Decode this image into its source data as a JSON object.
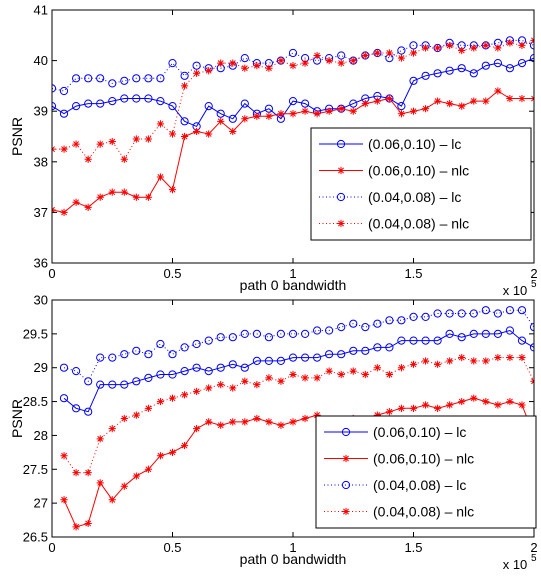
{
  "chart_data": [
    {
      "type": "line",
      "xlabel": "path 0 bandwidth",
      "ylabel": "PSNR",
      "x_multiplier_base": "x 10",
      "x_multiplier_exp": "5",
      "xlim": [
        0,
        200000
      ],
      "ylim": [
        36,
        41
      ],
      "xticks": [
        0,
        50000,
        100000,
        150000,
        200000
      ],
      "xtick_labels": [
        "0",
        "0.5",
        "1",
        "1.5",
        "2"
      ],
      "yticks": [
        36,
        37,
        38,
        39,
        40,
        41
      ],
      "ytick_labels": [
        "36",
        "37",
        "38",
        "39",
        "40",
        "41"
      ],
      "legend_position": "center-right",
      "x": [
        0,
        5000,
        10000,
        15000,
        20000,
        25000,
        30000,
        35000,
        40000,
        45000,
        50000,
        55000,
        60000,
        65000,
        70000,
        75000,
        80000,
        85000,
        90000,
        95000,
        100000,
        105000,
        110000,
        115000,
        120000,
        125000,
        130000,
        135000,
        140000,
        145000,
        150000,
        155000,
        160000,
        165000,
        170000,
        175000,
        180000,
        185000,
        190000,
        195000,
        200000
      ],
      "series": [
        {
          "name": "(0.06,0.10) – lc",
          "color": "#0000ff",
          "line": "solid",
          "marker": "circle",
          "values": [
            39.1,
            38.95,
            39.1,
            39.15,
            39.15,
            39.2,
            39.25,
            39.25,
            39.25,
            39.2,
            39.1,
            38.8,
            38.7,
            39.1,
            38.95,
            38.85,
            39.15,
            38.95,
            39.05,
            38.85,
            39.2,
            39.15,
            39.0,
            39.05,
            39.05,
            39.15,
            39.25,
            39.3,
            39.25,
            39.1,
            39.6,
            39.7,
            39.75,
            39.8,
            39.85,
            39.75,
            39.9,
            39.95,
            39.85,
            39.95,
            40.05
          ]
        },
        {
          "name": "(0.06,0.10) – nlc",
          "color": "#ff0000",
          "line": "solid",
          "marker": "star",
          "values": [
            37.05,
            37.0,
            37.2,
            37.1,
            37.3,
            37.4,
            37.4,
            37.3,
            37.3,
            37.7,
            37.45,
            38.5,
            38.6,
            38.55,
            38.8,
            38.6,
            38.85,
            38.9,
            38.9,
            38.95,
            38.95,
            39.0,
            38.95,
            39.0,
            39.05,
            39.0,
            39.15,
            39.2,
            39.25,
            38.95,
            39.0,
            39.05,
            39.2,
            39.15,
            39.1,
            39.2,
            39.2,
            39.4,
            39.25,
            39.25,
            39.25
          ]
        },
        {
          "name": "(0.04,0.08) – lc",
          "color": "#0000ff",
          "line": "dotted",
          "marker": "circle",
          "values": [
            39.45,
            39.4,
            39.65,
            39.65,
            39.65,
            39.55,
            39.6,
            39.65,
            39.65,
            39.65,
            39.95,
            39.7,
            39.9,
            39.85,
            39.85,
            39.9,
            40.05,
            39.95,
            39.95,
            40.0,
            40.15,
            40.05,
            40.0,
            40.05,
            40.1,
            40.0,
            40.1,
            40.15,
            40.05,
            40.2,
            40.3,
            40.3,
            40.25,
            40.35,
            40.3,
            40.3,
            40.3,
            40.35,
            40.4,
            40.4,
            40.3
          ]
        },
        {
          "name": "(0.04,0.08) – nlc",
          "color": "#ff0000",
          "line": "dotted",
          "marker": "star",
          "values": [
            38.25,
            38.25,
            38.35,
            38.05,
            38.35,
            38.4,
            38.05,
            38.45,
            38.45,
            38.75,
            38.55,
            39.5,
            39.75,
            39.8,
            39.95,
            39.95,
            39.85,
            39.9,
            39.85,
            40.0,
            39.9,
            39.95,
            40.1,
            40.0,
            39.95,
            40.0,
            40.1,
            40.15,
            40.15,
            40.05,
            40.15,
            40.25,
            40.25,
            40.3,
            40.2,
            40.25,
            40.3,
            40.25,
            40.35,
            40.3,
            40.4
          ]
        }
      ]
    },
    {
      "type": "line",
      "xlabel": "path 0 bandwidth",
      "ylabel": "PSNR",
      "x_multiplier_base": "x 10",
      "x_multiplier_exp": "5",
      "xlim": [
        0,
        200000
      ],
      "ylim": [
        26.5,
        30
      ],
      "xticks": [
        0,
        50000,
        100000,
        150000,
        200000
      ],
      "xtick_labels": [
        "0",
        "0.5",
        "1",
        "1.5",
        "2"
      ],
      "yticks": [
        26.5,
        27,
        27.5,
        28,
        28.5,
        29,
        29.5,
        30
      ],
      "ytick_labels": [
        "26.5",
        "27",
        "27.5",
        "28",
        "28.5",
        "29",
        "29.5",
        "30"
      ],
      "legend_position": "lower-right",
      "x": [
        5000,
        10000,
        15000,
        20000,
        25000,
        30000,
        35000,
        40000,
        45000,
        50000,
        55000,
        60000,
        65000,
        70000,
        75000,
        80000,
        85000,
        90000,
        95000,
        100000,
        105000,
        110000,
        115000,
        120000,
        125000,
        130000,
        135000,
        140000,
        145000,
        150000,
        155000,
        160000,
        165000,
        170000,
        175000,
        180000,
        185000,
        190000,
        195000,
        200000
      ],
      "series": [
        {
          "name": "(0.06,0.10) – lc",
          "color": "#0000ff",
          "line": "solid",
          "marker": "circle",
          "values": [
            28.55,
            28.4,
            28.35,
            28.75,
            28.75,
            28.75,
            28.8,
            28.85,
            28.9,
            28.9,
            28.95,
            29.0,
            28.95,
            29.0,
            29.05,
            29.0,
            29.1,
            29.1,
            29.1,
            29.15,
            29.15,
            29.15,
            29.2,
            29.2,
            29.25,
            29.25,
            29.3,
            29.3,
            29.4,
            29.4,
            29.4,
            29.4,
            29.5,
            29.45,
            29.5,
            29.5,
            29.5,
            29.55,
            29.4,
            29.3
          ]
        },
        {
          "name": "(0.06,0.10) – nlc",
          "color": "#ff0000",
          "line": "solid",
          "marker": "star",
          "values": [
            27.05,
            26.65,
            26.7,
            27.3,
            27.05,
            27.25,
            27.4,
            27.5,
            27.7,
            27.75,
            27.85,
            28.1,
            28.2,
            28.15,
            28.2,
            28.2,
            28.25,
            28.2,
            28.15,
            28.2,
            28.25,
            28.3,
            28.2,
            28.15,
            28.25,
            28.2,
            28.3,
            28.35,
            28.4,
            28.4,
            28.45,
            28.4,
            28.45,
            28.5,
            28.55,
            28.5,
            28.45,
            28.5,
            28.45,
            28.0
          ]
        },
        {
          "name": "(0.04,0.08) – lc",
          "color": "#0000ff",
          "line": "dotted",
          "marker": "circle",
          "values": [
            29.0,
            28.95,
            28.8,
            29.15,
            29.15,
            29.2,
            29.25,
            29.2,
            29.35,
            29.2,
            29.3,
            29.35,
            29.4,
            29.45,
            29.45,
            29.5,
            29.5,
            29.45,
            29.5,
            29.5,
            29.5,
            29.55,
            29.55,
            29.6,
            29.65,
            29.6,
            29.65,
            29.7,
            29.7,
            29.75,
            29.75,
            29.8,
            29.8,
            29.8,
            29.8,
            29.85,
            29.8,
            29.85,
            29.85,
            29.6
          ]
        },
        {
          "name": "(0.04,0.08) – nlc",
          "color": "#ff0000",
          "line": "dotted",
          "marker": "star",
          "values": [
            27.7,
            27.45,
            27.45,
            27.95,
            28.1,
            28.25,
            28.3,
            28.4,
            28.5,
            28.55,
            28.6,
            28.65,
            28.7,
            28.75,
            28.7,
            28.8,
            28.75,
            28.85,
            28.8,
            28.9,
            28.85,
            28.85,
            28.95,
            28.9,
            28.95,
            28.9,
            29.0,
            28.9,
            29.0,
            29.05,
            29.1,
            29.05,
            29.1,
            29.15,
            29.1,
            29.1,
            29.15,
            29.15,
            29.15,
            28.8
          ]
        }
      ]
    }
  ]
}
